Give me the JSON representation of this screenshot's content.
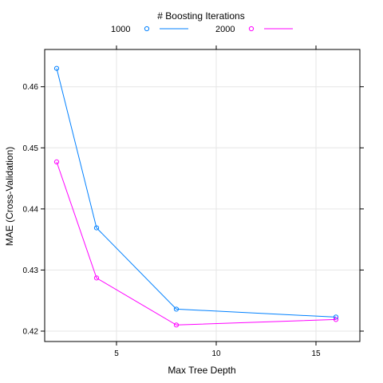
{
  "chart_data": {
    "type": "line",
    "legend_title": "# Boosting Iterations",
    "legend_placement": "top",
    "xlabel": "Max Tree Depth",
    "ylabel": "MAE (Cross-Validation)",
    "xlim": [
      1.4,
      17.2
    ],
    "ylim": [
      0.4183,
      0.4661
    ],
    "xticks": [
      5,
      10,
      15
    ],
    "yticks": [
      0.42,
      0.43,
      0.44,
      0.45,
      0.46
    ],
    "xtick_labels": [
      "5",
      "10",
      "15"
    ],
    "ytick_labels": [
      "0.42",
      "0.43",
      "0.44",
      "0.45",
      "0.46"
    ],
    "grid": true,
    "x": [
      2,
      4,
      8,
      16
    ],
    "series": [
      {
        "name": "1000",
        "color": "#0080ff",
        "marker": "open-circle",
        "values": [
          0.463,
          0.4369,
          0.4236,
          0.4223
        ]
      },
      {
        "name": "2000",
        "color": "#ff00ff",
        "marker": "open-circle",
        "values": [
          0.4477,
          0.4287,
          0.421,
          0.4219
        ]
      }
    ]
  }
}
